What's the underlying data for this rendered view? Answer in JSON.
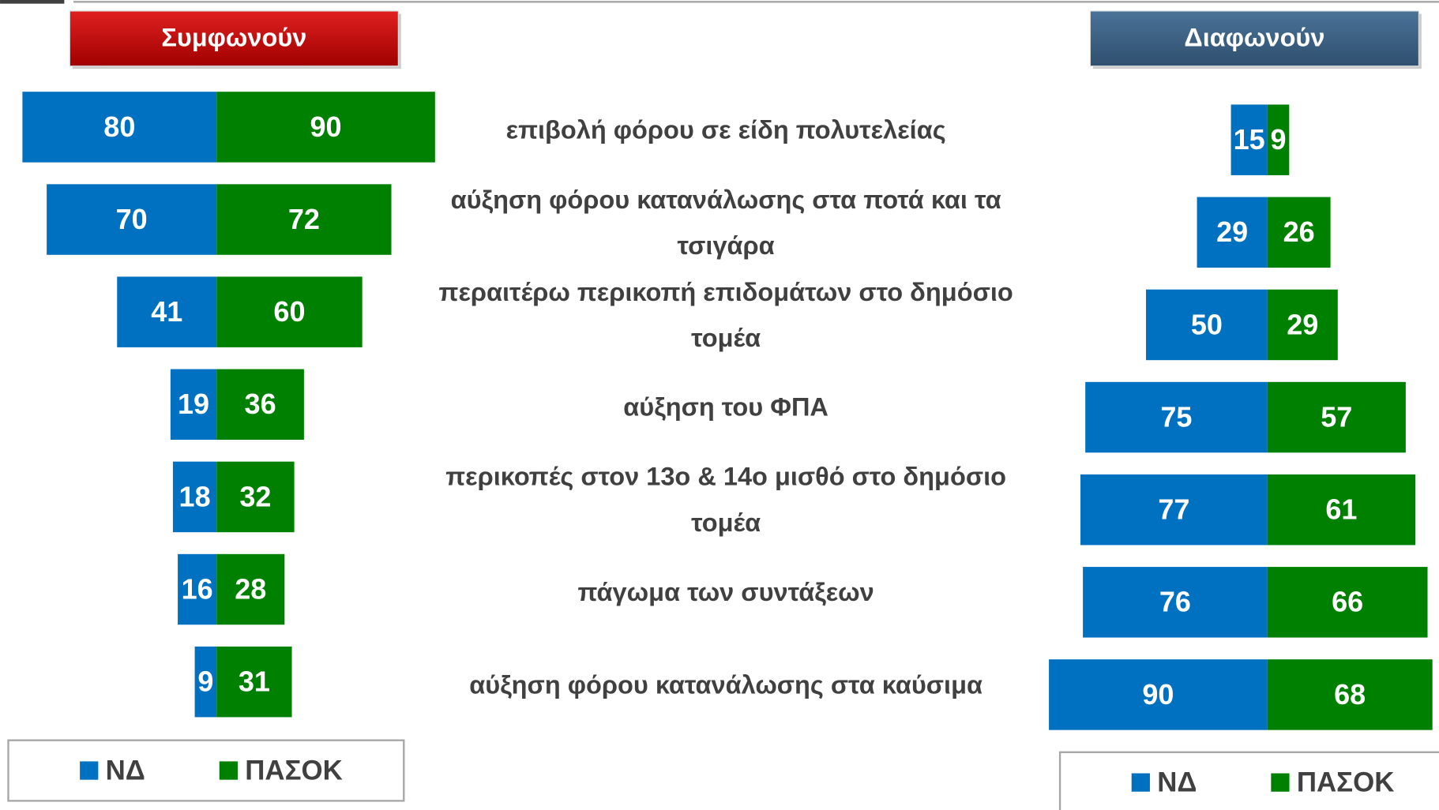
{
  "chart_data": {
    "type": "bar",
    "categories": [
      "επιβολή φόρου σε είδη πολυτελείας",
      "αύξηση φόρου κατανάλωσης στα ποτά και τα τσιγάρα",
      "περαιτέρω περικοπή επιδομάτων στο δημόσιο τομέα",
      "αύξηση του ΦΠΑ",
      "περικοπές στον 13ο & 14ο μισθό στο δημόσιο τομέα",
      "πάγωμα των συντάξεων",
      "αύξηση φόρου κατανάλωσης στα καύσιμα"
    ],
    "panels": [
      {
        "title": "Συμφωνούν",
        "color": "#c00000",
        "series": [
          {
            "name": "ΝΔ",
            "color": "#0070c0",
            "values": [
              80,
              70,
              41,
              19,
              18,
              16,
              9
            ]
          },
          {
            "name": "ΠΑΣΟΚ",
            "color": "#008000",
            "values": [
              90,
              72,
              60,
              36,
              32,
              28,
              31
            ]
          }
        ]
      },
      {
        "title": "Διαφωνούν",
        "color": "#3b5f82",
        "series": [
          {
            "name": "ΝΔ",
            "color": "#0070c0",
            "values": [
              15,
              29,
              50,
              75,
              77,
              76,
              90
            ]
          },
          {
            "name": "ΠΑΣΟΚ",
            "color": "#008000",
            "values": [
              9,
              26,
              29,
              57,
              61,
              66,
              68
            ]
          }
        ]
      }
    ]
  }
}
